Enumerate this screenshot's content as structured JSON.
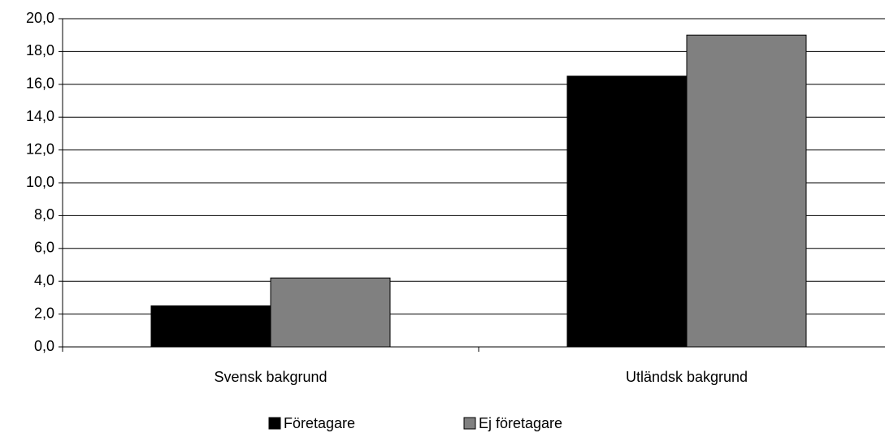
{
  "chart_data": {
    "type": "bar",
    "categories": [
      "Svensk bakgrund",
      "Utländsk bakgrund"
    ],
    "series": [
      {
        "name": "Företagare",
        "color": "#000000",
        "values": [
          2.5,
          16.5
        ]
      },
      {
        "name": "Ej företagare",
        "color": "#808080",
        "values": [
          4.2,
          19.0
        ]
      }
    ],
    "ylim": [
      0,
      20
    ],
    "yticks": [
      {
        "value": 0,
        "label": "0,0"
      },
      {
        "value": 2,
        "label": "2,0"
      },
      {
        "value": 4,
        "label": "4,0"
      },
      {
        "value": 6,
        "label": "6,0"
      },
      {
        "value": 8,
        "label": "8,0"
      },
      {
        "value": 10,
        "label": "10,0"
      },
      {
        "value": 12,
        "label": "12,0"
      },
      {
        "value": 14,
        "label": "14,0"
      },
      {
        "value": 16,
        "label": "16,0"
      },
      {
        "value": 18,
        "label": "18,0"
      },
      {
        "value": 20,
        "label": "20,0"
      }
    ],
    "grid": true,
    "legend": "bottom"
  }
}
